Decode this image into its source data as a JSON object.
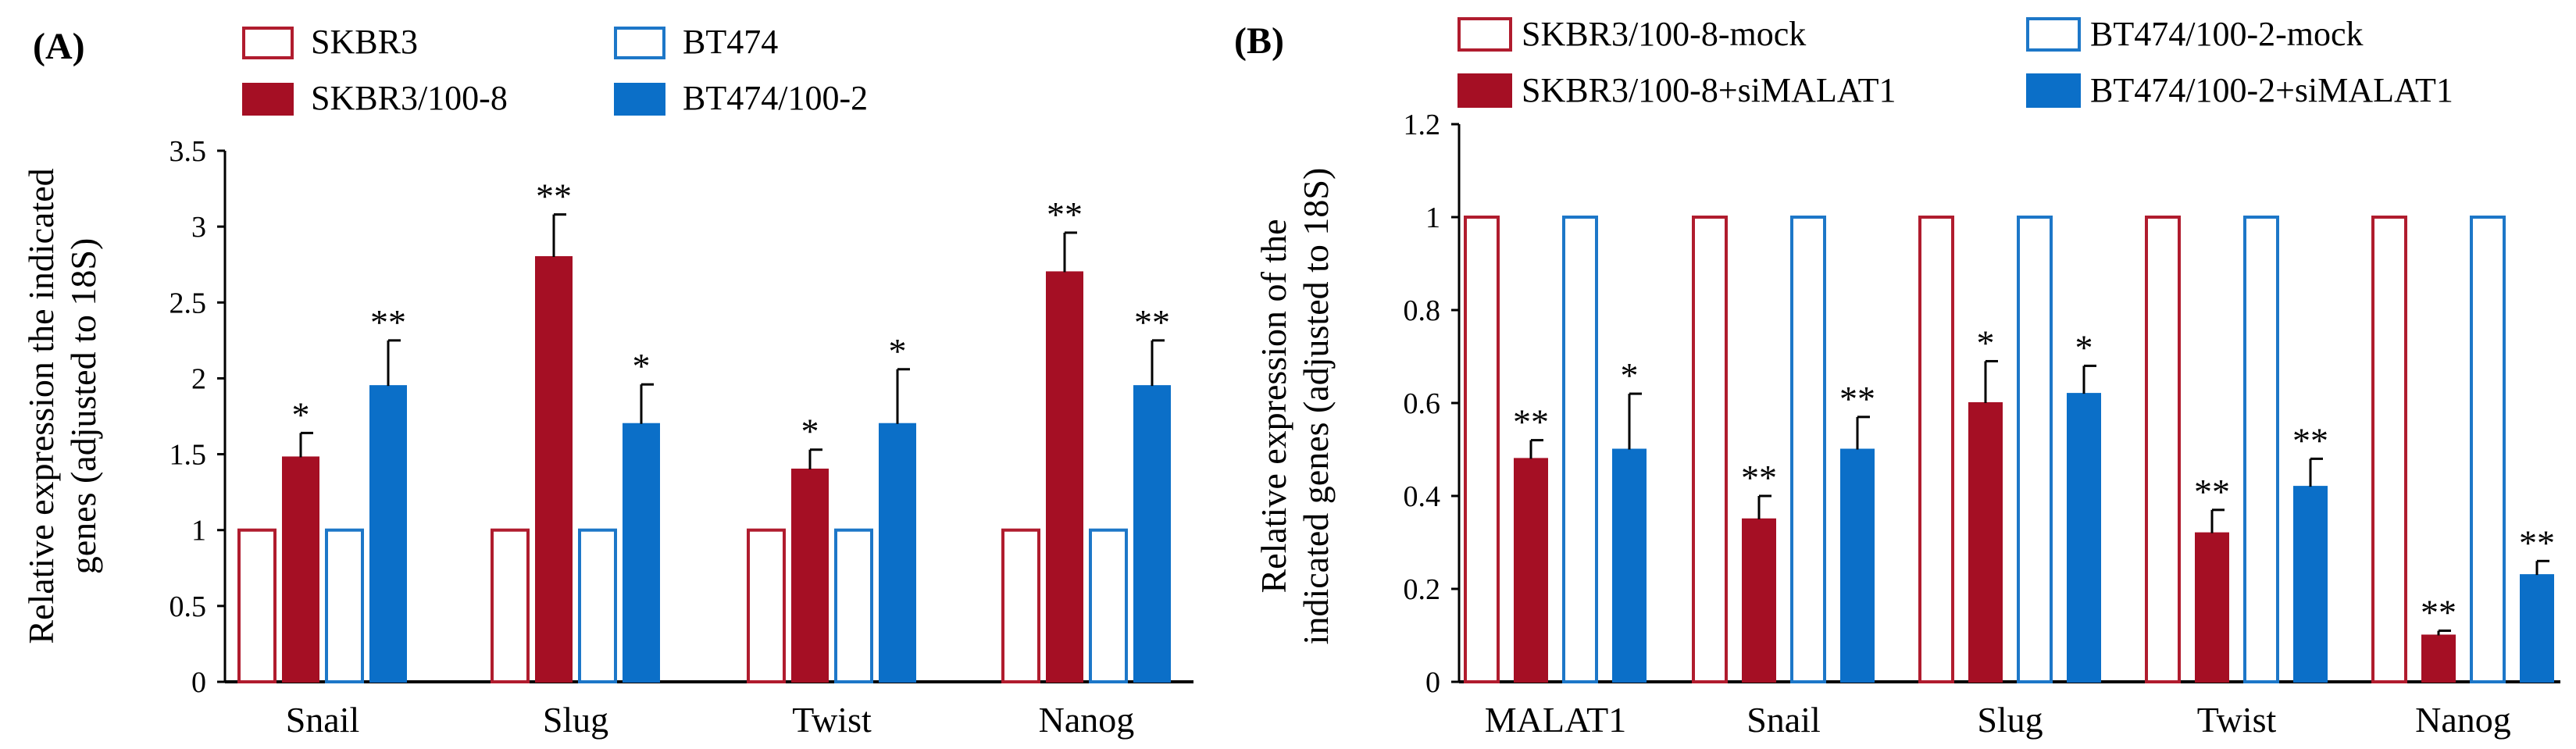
{
  "chart_data": [
    {
      "panel_label": "(A)",
      "type": "bar",
      "ylabel_lines": [
        "Relative expression the indicated",
        "genes (adjusted to 18S)"
      ],
      "categories": [
        "Snail",
        "Slug",
        "Twist",
        "Nanog"
      ],
      "ylim": [
        0,
        3.5
      ],
      "yticks": [
        "0",
        "0.5",
        "1",
        "1.5",
        "2",
        "2.5",
        "3",
        "3.5"
      ],
      "series": [
        {
          "name": "SKBR3",
          "values": [
            1,
            1,
            1,
            1
          ],
          "errors": [
            0,
            0,
            0,
            0
          ],
          "sig": [
            "",
            "",
            "",
            ""
          ],
          "fill": "#ffffff",
          "stroke": "#b01c2e"
        },
        {
          "name": "SKBR3/100-8",
          "values": [
            1.48,
            2.8,
            1.4,
            2.7
          ],
          "errors": [
            0.16,
            0.28,
            0.13,
            0.26
          ],
          "sig": [
            "*",
            "**",
            "*",
            "**"
          ],
          "fill": "#a50f24",
          "stroke": "#a50f24"
        },
        {
          "name": "BT474",
          "values": [
            1,
            1,
            1,
            1
          ],
          "errors": [
            0,
            0,
            0,
            0
          ],
          "sig": [
            "",
            "",
            "",
            ""
          ],
          "fill": "#ffffff",
          "stroke": "#1d77c8"
        },
        {
          "name": "BT474/100-2",
          "values": [
            1.95,
            1.7,
            1.7,
            1.95
          ],
          "errors": [
            0.3,
            0.26,
            0.36,
            0.3
          ],
          "sig": [
            "**",
            "*",
            "*",
            "**"
          ],
          "fill": "#0b6fc8",
          "stroke": "#0b6fc8"
        }
      ]
    },
    {
      "panel_label": "(B)",
      "type": "bar",
      "ylabel_lines": [
        "Relative expression of the",
        "indicated  genes (adjusted to 18S)"
      ],
      "categories": [
        "MALAT1",
        "Snail",
        "Slug",
        "Twist",
        "Nanog"
      ],
      "ylim": [
        0,
        1.2
      ],
      "yticks": [
        "0",
        "0.2",
        "0.4",
        "0.6",
        "0.8",
        "1",
        "1.2"
      ],
      "series": [
        {
          "name": "SKBR3/100-8-mock",
          "values": [
            1,
            1,
            1,
            1,
            1
          ],
          "errors": [
            0,
            0,
            0,
            0,
            0
          ],
          "sig": [
            "",
            "",
            "",
            "",
            ""
          ],
          "fill": "#ffffff",
          "stroke": "#b01c2e"
        },
        {
          "name": "SKBR3/100-8+siMALAT1",
          "values": [
            0.48,
            0.35,
            0.6,
            0.32,
            0.1
          ],
          "errors": [
            0.04,
            0.05,
            0.09,
            0.05,
            0.01
          ],
          "sig": [
            "**",
            "**",
            "*",
            "**",
            "**"
          ],
          "fill": "#a50f24",
          "stroke": "#a50f24"
        },
        {
          "name": "BT474/100-2-mock",
          "values": [
            1,
            1,
            1,
            1,
            1
          ],
          "errors": [
            0,
            0,
            0,
            0,
            0
          ],
          "sig": [
            "",
            "",
            "",
            "",
            ""
          ],
          "fill": "#ffffff",
          "stroke": "#1d77c8"
        },
        {
          "name": "BT474/100-2+siMALAT1",
          "values": [
            0.5,
            0.5,
            0.62,
            0.42,
            0.23
          ],
          "errors": [
            0.12,
            0.07,
            0.06,
            0.06,
            0.03
          ],
          "sig": [
            "*",
            "**",
            "*",
            "**",
            "**"
          ],
          "fill": "#0b6fc8",
          "stroke": "#0b6fc8"
        }
      ]
    }
  ]
}
